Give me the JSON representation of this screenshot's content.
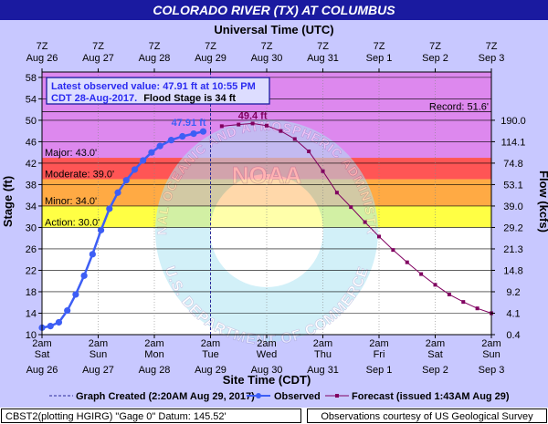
{
  "title": "COLORADO RIVER (TX) AT COLUMBUS",
  "top_axis_title": "Universal Time (UTC)",
  "bottom_axis_title": "Site Time (CDT)",
  "latest": {
    "line1": "Latest observed value: 47.91 ft at 10:55 PM",
    "line2a": "CDT 28-Aug-2017.",
    "line2b": "Flood Stage is 34 ft"
  },
  "record_label": "Record: 51.6'",
  "watermark": {
    "top_text": "NATIONAL OCEANIC AND ATMOSPHERIC ADMINISTRATION",
    "bottom_text": "U.S. DEPARTMENT OF COMMERCE",
    "center": "NOAA"
  },
  "legend": {
    "graph_created": "Graph Created (2:20AM Aug 29, 2017)",
    "observed": "Observed",
    "forecast": "Forecast (issued 1:43AM Aug 29)"
  },
  "footer": {
    "left": "CBST2(plotting HGIRG) \"Gage 0\" Datum: 145.52'",
    "right": "Observations courtesy of US Geological Survey"
  },
  "colors": {
    "title_bar": "#1a1aa0",
    "frame": "#c8c8ff",
    "record": "#d37cf0",
    "major": "#dd88ee",
    "moderate": "#ff5555",
    "minor": "#ffaa44",
    "action": "#ffff44",
    "observed": "#3d5ef5",
    "forecast": "#800060"
  },
  "chart_data": {
    "type": "line",
    "title": "COLORADO RIVER (TX) AT COLUMBUS",
    "xlabel": "Site Time (CDT)",
    "ylabel": "Stage (ft)",
    "y2label": "Flow (kcfs)",
    "ylim": [
      10,
      59
    ],
    "xlim": [
      "Aug 26 2am",
      "Sep 3 2am"
    ],
    "bottom_ticks": [
      {
        "d": 0,
        "time": "2am",
        "day": "Sat",
        "date": "Aug 26"
      },
      {
        "d": 1,
        "time": "2am",
        "day": "Sun",
        "date": "Aug 27"
      },
      {
        "d": 2,
        "time": "2am",
        "day": "Mon",
        "date": "Aug 28"
      },
      {
        "d": 3,
        "time": "2am",
        "day": "Tue",
        "date": "Aug 29"
      },
      {
        "d": 4,
        "time": "2am",
        "day": "Wed",
        "date": "Aug 30"
      },
      {
        "d": 5,
        "time": "2am",
        "day": "Thu",
        "date": "Aug 31"
      },
      {
        "d": 6,
        "time": "2am",
        "day": "Fri",
        "date": "Sep 1"
      },
      {
        "d": 7,
        "time": "2am",
        "day": "Sat",
        "date": "Sep 2"
      },
      {
        "d": 8,
        "time": "2am",
        "day": "Sun",
        "date": "Sep 3"
      }
    ],
    "top_ticks": [
      {
        "d": 0,
        "time": "7Z",
        "date": "Aug 26"
      },
      {
        "d": 1,
        "time": "7Z",
        "date": "Aug 27"
      },
      {
        "d": 2,
        "time": "7Z",
        "date": "Aug 28"
      },
      {
        "d": 3,
        "time": "7Z",
        "date": "Aug 29"
      },
      {
        "d": 4,
        "time": "7Z",
        "date": "Aug 30"
      },
      {
        "d": 5,
        "time": "7Z",
        "date": "Aug 31"
      },
      {
        "d": 6,
        "time": "7Z",
        "date": "Sep 1"
      },
      {
        "d": 7,
        "time": "7Z",
        "date": "Sep 2"
      },
      {
        "d": 8,
        "time": "7Z",
        "date": "Sep 3"
      }
    ],
    "left_ticks": [
      10,
      14,
      18,
      22,
      26,
      30,
      34,
      38,
      42,
      46,
      50,
      54,
      58
    ],
    "right_ticks": [
      {
        "stage": 10,
        "label": "0.4"
      },
      {
        "stage": 14,
        "label": "4.1"
      },
      {
        "stage": 18,
        "label": "9.2"
      },
      {
        "stage": 22,
        "label": "14.8"
      },
      {
        "stage": 26,
        "label": "21.3"
      },
      {
        "stage": 30,
        "label": "29.2"
      },
      {
        "stage": 34,
        "label": "39.0"
      },
      {
        "stage": 38,
        "label": "53.1"
      },
      {
        "stage": 42,
        "label": "74.8"
      },
      {
        "stage": 46,
        "label": "114.1"
      },
      {
        "stage": 50,
        "label": "190.0"
      }
    ],
    "flood_categories": [
      {
        "name": "Record",
        "stage": 51.6,
        "label": "Record: 51.6'"
      },
      {
        "name": "Major",
        "stage": 43.0,
        "label": "Major: 43.0'"
      },
      {
        "name": "Moderate",
        "stage": 39.0,
        "label": "Moderate: 39.0'"
      },
      {
        "name": "Minor",
        "stage": 34.0,
        "label": "Minor: 34.0'"
      },
      {
        "name": "Action",
        "stage": 30.0,
        "label": "Action: 30.0'"
      }
    ],
    "graph_created_day": 3.0,
    "series": [
      {
        "name": "Observed",
        "peak_label": "47.91 ft",
        "points": [
          [
            0.0,
            11.3
          ],
          [
            0.15,
            11.6
          ],
          [
            0.3,
            12.3
          ],
          [
            0.45,
            14.5
          ],
          [
            0.6,
            17.5
          ],
          [
            0.75,
            21.0
          ],
          [
            0.9,
            25.0
          ],
          [
            1.05,
            29.5
          ],
          [
            1.2,
            33.5
          ],
          [
            1.35,
            36.5
          ],
          [
            1.5,
            38.8
          ],
          [
            1.65,
            40.8
          ],
          [
            1.8,
            42.5
          ],
          [
            1.95,
            44.0
          ],
          [
            2.1,
            45.2
          ],
          [
            2.3,
            46.3
          ],
          [
            2.5,
            47.0
          ],
          [
            2.7,
            47.5
          ],
          [
            2.87,
            47.91
          ]
        ]
      },
      {
        "name": "Forecast",
        "peak_label": "49.4 ft",
        "points": [
          [
            3.2,
            48.9
          ],
          [
            3.5,
            49.2
          ],
          [
            3.75,
            49.4
          ],
          [
            4.0,
            49.0
          ],
          [
            4.25,
            48.0
          ],
          [
            4.5,
            46.5
          ],
          [
            4.75,
            44.2
          ],
          [
            5.0,
            40.5
          ],
          [
            5.25,
            36.5
          ],
          [
            5.5,
            33.8
          ],
          [
            5.75,
            31.0
          ],
          [
            6.0,
            28.3
          ],
          [
            6.25,
            25.8
          ],
          [
            6.5,
            23.5
          ],
          [
            6.75,
            21.3
          ],
          [
            7.0,
            19.3
          ],
          [
            7.25,
            17.5
          ],
          [
            7.5,
            16.1
          ],
          [
            7.75,
            14.9
          ],
          [
            8.0,
            14.0
          ]
        ]
      }
    ]
  }
}
